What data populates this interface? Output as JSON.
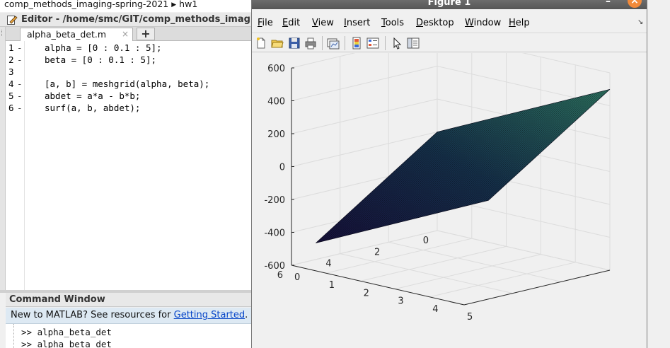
{
  "desktop": {
    "breadcrumb": [
      "comp_methods_imaging-spring-2021",
      "hw1"
    ],
    "editor_title": "Editor - /home/smc/GIT/comp_methods_imaging",
    "tab_label": "alpha_beta_det.m",
    "tab_close": "×",
    "tab_add": "+",
    "code_lines": [
      {
        "num": "1",
        "dash": "-",
        "text": "alpha = [0 : 0.1 : 5];"
      },
      {
        "num": "2",
        "dash": "-",
        "text": "beta = [0 : 0.1 : 5];"
      },
      {
        "num": "3",
        "dash": "",
        "text": ""
      },
      {
        "num": "4",
        "dash": "-",
        "text": "[a, b] = meshgrid(alpha, beta);"
      },
      {
        "num": "5",
        "dash": "-",
        "text": "abdet = a*a - b*b;"
      },
      {
        "num": "6",
        "dash": "-",
        "text": "surf(a, b, abdet);"
      }
    ],
    "command_window": {
      "title": "Command Window",
      "banner_text": "New to MATLAB? See resources for ",
      "banner_link": "Getting Started",
      "banner_end": ".",
      "lines": [
        ">> alpha_beta_det",
        ">> alpha_beta_det"
      ]
    }
  },
  "figure": {
    "title": "Figure 1",
    "minimize": "–",
    "close": "×",
    "menus": [
      {
        "u": "F",
        "rest": "ile"
      },
      {
        "u": "E",
        "rest": "dit"
      },
      {
        "u": "V",
        "rest": "iew"
      },
      {
        "u": "I",
        "rest": "nsert"
      },
      {
        "u": "T",
        "rest": "ools"
      },
      {
        "u": "D",
        "rest": "esktop"
      },
      {
        "u": "W",
        "rest": "indow"
      },
      {
        "u": "H",
        "rest": "elp"
      }
    ],
    "toolbar_icons": [
      "new-file-icon",
      "open-folder-icon",
      "save-icon",
      "print-icon",
      "link-plot-icon",
      "colorbar-icon",
      "legend-icon",
      "pointer-icon",
      "property-inspector-icon"
    ],
    "surface_color_low": "#1a1440",
    "surface_color_high": "#2a7a6a"
  },
  "chart_data": {
    "type": "surface",
    "title": "",
    "xlabel": "",
    "ylabel": "",
    "zlabel": "",
    "x_ticks": [
      "0",
      "1",
      "2",
      "3",
      "4",
      "5"
    ],
    "y_ticks": [
      "0",
      "2",
      "4",
      "6"
    ],
    "z_ticks": [
      "600",
      "400",
      "200",
      "0",
      "-200",
      "-400",
      "-600"
    ],
    "xlim": [
      0,
      5
    ],
    "ylim": [
      0,
      6
    ],
    "zlim": [
      -600,
      600
    ],
    "corners": [
      {
        "x": 0,
        "y": 0,
        "z": 0
      },
      {
        "x": 5,
        "y": 0,
        "z": 500
      },
      {
        "x": 5,
        "y": 5,
        "z": 0
      },
      {
        "x": 0,
        "y": 5,
        "z": -500
      }
    ],
    "grid": true
  }
}
